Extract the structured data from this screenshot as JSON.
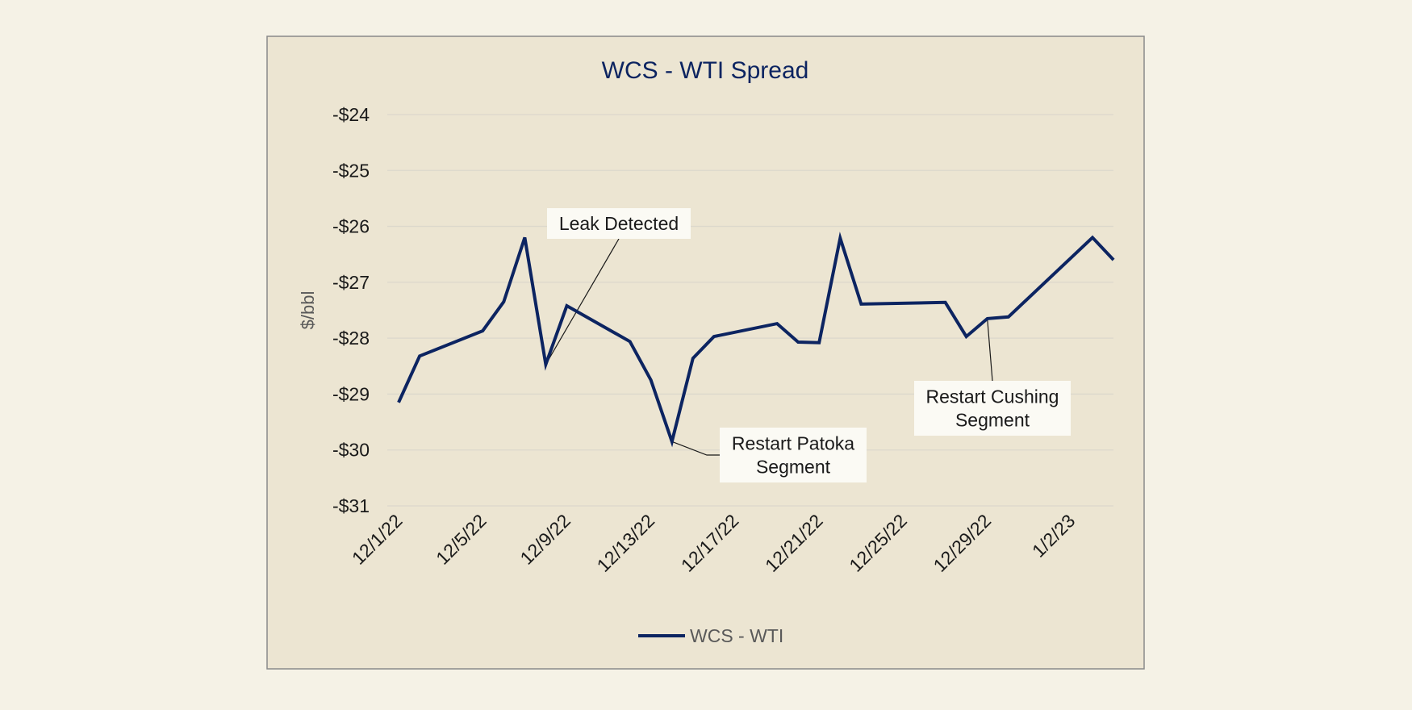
{
  "chart_data": {
    "type": "line",
    "title": "WCS - WTI Spread",
    "ylabel": "$/bbl",
    "xlabel": "",
    "ylim": [
      -31,
      -24
    ],
    "yticks": [
      -24,
      -25,
      -26,
      -27,
      -28,
      -29,
      -30,
      -31
    ],
    "ytick_labels": [
      "-$24",
      "-$25",
      "-$26",
      "-$27",
      "-$28",
      "-$29",
      "-$30",
      "-$31"
    ],
    "xticks": [
      "12/1/22",
      "12/5/22",
      "12/9/22",
      "12/13/22",
      "12/17/22",
      "12/21/22",
      "12/25/22",
      "12/29/22",
      "1/2/23"
    ],
    "x_start": "12/1/22",
    "x_end": "1/3/23",
    "grid": true,
    "legend_position": "bottom",
    "series": [
      {
        "name": "WCS - WTI",
        "color": "#0c2461",
        "points": [
          {
            "x": "12/1/22",
            "y": -29.15
          },
          {
            "x": "12/2/22",
            "y": -28.32
          },
          {
            "x": "12/5/22",
            "y": -27.87
          },
          {
            "x": "12/6/22",
            "y": -27.35
          },
          {
            "x": "12/7/22",
            "y": -26.2
          },
          {
            "x": "12/8/22",
            "y": -28.47
          },
          {
            "x": "12/9/22",
            "y": -27.42
          },
          {
            "x": "12/12/22",
            "y": -28.06
          },
          {
            "x": "12/13/22",
            "y": -28.75
          },
          {
            "x": "12/14/22",
            "y": -29.85
          },
          {
            "x": "12/15/22",
            "y": -28.36
          },
          {
            "x": "12/16/22",
            "y": -27.97
          },
          {
            "x": "12/19/22",
            "y": -27.74
          },
          {
            "x": "12/20/22",
            "y": -28.07
          },
          {
            "x": "12/21/22",
            "y": -28.08
          },
          {
            "x": "12/22/22",
            "y": -26.21
          },
          {
            "x": "12/23/22",
            "y": -27.39
          },
          {
            "x": "12/27/22",
            "y": -27.36
          },
          {
            "x": "12/28/22",
            "y": -27.97
          },
          {
            "x": "12/29/22",
            "y": -27.65
          },
          {
            "x": "12/30/22",
            "y": -27.62
          },
          {
            "x": "1/3/23",
            "y": -26.2
          },
          {
            "x": "1/4/23",
            "y": -26.6
          }
        ]
      }
    ],
    "annotations": [
      {
        "text_lines": [
          "Leak Detected"
        ],
        "point": {
          "x": "12/8/22",
          "y": -28.47
        }
      },
      {
        "text_lines": [
          "Restart Patoka",
          "Segment"
        ],
        "point": {
          "x": "12/14/22",
          "y": -29.85
        }
      },
      {
        "text_lines": [
          "Restart Cushing",
          "Segment"
        ],
        "point": {
          "x": "12/29/22",
          "y": -27.65
        }
      }
    ],
    "colors": {
      "page_background": "#f5f2e6",
      "plot_background": "#ece5d2",
      "border": "#8a8a8a",
      "gridline": "#dcd8cc",
      "title": "#0c2461",
      "axis_text": "#1a1a1a",
      "axis_title": "#595959",
      "legend_text": "#595959",
      "callout_fill": "#fbfaf4"
    }
  }
}
